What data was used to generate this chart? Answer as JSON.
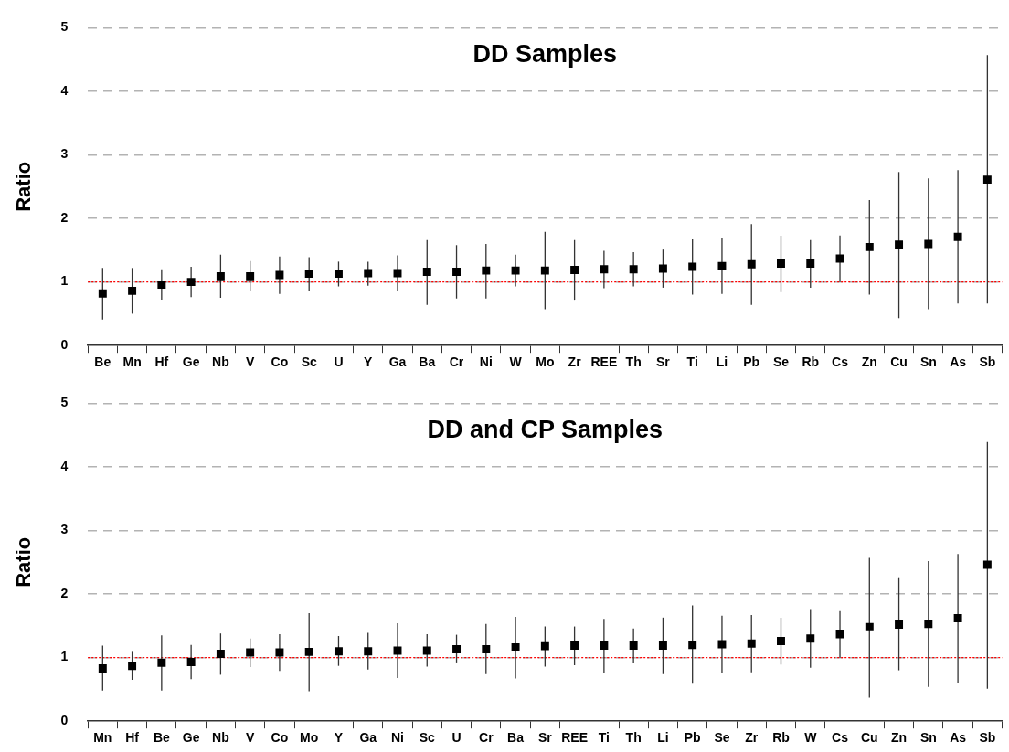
{
  "chart_data": [
    {
      "type": "scatter",
      "title": "DD Samples",
      "ylabel": "Ratio",
      "color": "#000000",
      "marker": "square",
      "categories": [
        "Be",
        "Mn",
        "Hf",
        "Ge",
        "Nb",
        "V",
        "Co",
        "Sc",
        "U",
        "Y",
        "Ga",
        "Ba",
        "Cr",
        "Ni",
        "W",
        "Mo",
        "Zr",
        "REE",
        "Th",
        "Sr",
        "Ti",
        "Li",
        "Pb",
        "Se",
        "Rb",
        "Cs",
        "Zn",
        "Cu",
        "Sn",
        "As",
        "Sb"
      ],
      "values": [
        0.82,
        0.86,
        0.96,
        1.0,
        1.09,
        1.09,
        1.11,
        1.13,
        1.13,
        1.14,
        1.14,
        1.16,
        1.16,
        1.18,
        1.18,
        1.18,
        1.19,
        1.2,
        1.2,
        1.21,
        1.24,
        1.25,
        1.28,
        1.29,
        1.29,
        1.37,
        1.55,
        1.59,
        1.6,
        1.71,
        2.61
      ],
      "errors": [
        [
          0.41,
          1.22
        ],
        [
          0.5,
          1.22
        ],
        [
          0.72,
          1.2
        ],
        [
          0.76,
          1.24
        ],
        [
          0.75,
          1.43
        ],
        [
          0.86,
          1.33
        ],
        [
          0.81,
          1.4
        ],
        [
          0.86,
          1.39
        ],
        [
          0.93,
          1.32
        ],
        [
          0.94,
          1.32
        ],
        [
          0.85,
          1.42
        ],
        [
          0.64,
          1.66
        ],
        [
          0.74,
          1.58
        ],
        [
          0.74,
          1.6
        ],
        [
          0.93,
          1.43
        ],
        [
          0.57,
          1.79
        ],
        [
          0.72,
          1.66
        ],
        [
          0.9,
          1.49
        ],
        [
          0.93,
          1.47
        ],
        [
          0.91,
          1.51
        ],
        [
          0.8,
          1.67
        ],
        [
          0.81,
          1.69
        ],
        [
          0.64,
          1.91
        ],
        [
          0.84,
          1.73
        ],
        [
          0.91,
          1.66
        ],
        [
          1.0,
          1.73
        ],
        [
          0.8,
          2.29
        ],
        [
          0.43,
          2.73
        ],
        [
          0.57,
          2.63
        ],
        [
          0.66,
          2.76
        ],
        [
          0.66,
          4.57
        ]
      ],
      "ylim": [
        0,
        5
      ],
      "yticks": [
        0,
        1,
        2,
        3,
        4,
        5
      ],
      "grid": "y",
      "ref_lines": [
        {
          "axis": "y",
          "value": 1,
          "color": "#ff0000",
          "line_style": "dotted"
        }
      ]
    },
    {
      "type": "scatter",
      "title": "DD and CP Samples",
      "ylabel": "Ratio",
      "color": "#000000",
      "marker": "square",
      "categories": [
        "Mn",
        "Hf",
        "Be",
        "Ge",
        "Nb",
        "V",
        "Co",
        "Mo",
        "Y",
        "Ga",
        "Ni",
        "Sc",
        "U",
        "Cr",
        "Ba",
        "Sr",
        "REE",
        "Ti",
        "Th",
        "Li",
        "Pb",
        "Se",
        "Zr",
        "Rb",
        "W",
        "Cs",
        "Cu",
        "Zn",
        "Sn",
        "As",
        "Sb"
      ],
      "values": [
        0.83,
        0.87,
        0.92,
        0.93,
        1.06,
        1.08,
        1.08,
        1.09,
        1.1,
        1.1,
        1.11,
        1.11,
        1.13,
        1.13,
        1.16,
        1.18,
        1.19,
        1.19,
        1.19,
        1.19,
        1.2,
        1.21,
        1.22,
        1.26,
        1.3,
        1.37,
        1.48,
        1.52,
        1.53,
        1.62,
        2.46
      ],
      "errors": [
        [
          0.48,
          1.19
        ],
        [
          0.65,
          1.09
        ],
        [
          0.48,
          1.35
        ],
        [
          0.66,
          1.2
        ],
        [
          0.73,
          1.38
        ],
        [
          0.85,
          1.3
        ],
        [
          0.79,
          1.37
        ],
        [
          0.47,
          1.7
        ],
        [
          0.87,
          1.34
        ],
        [
          0.81,
          1.39
        ],
        [
          0.68,
          1.54
        ],
        [
          0.86,
          1.37
        ],
        [
          0.91,
          1.36
        ],
        [
          0.74,
          1.53
        ],
        [
          0.67,
          1.64
        ],
        [
          0.86,
          1.49
        ],
        [
          0.88,
          1.49
        ],
        [
          0.75,
          1.61
        ],
        [
          0.91,
          1.46
        ],
        [
          0.74,
          1.63
        ],
        [
          0.59,
          1.82
        ],
        [
          0.75,
          1.66
        ],
        [
          0.77,
          1.67
        ],
        [
          0.89,
          1.63
        ],
        [
          0.84,
          1.75
        ],
        [
          1.0,
          1.73
        ],
        [
          0.37,
          2.57
        ],
        [
          0.8,
          2.25
        ],
        [
          0.54,
          2.52
        ],
        [
          0.6,
          2.63
        ],
        [
          0.51,
          4.39
        ]
      ],
      "ylim": [
        0,
        5
      ],
      "yticks": [
        0,
        1,
        2,
        3,
        4,
        5
      ],
      "grid": "y",
      "ref_lines": [
        {
          "axis": "y",
          "value": 1,
          "color": "#ff0000",
          "line_style": "dotted"
        }
      ]
    }
  ]
}
